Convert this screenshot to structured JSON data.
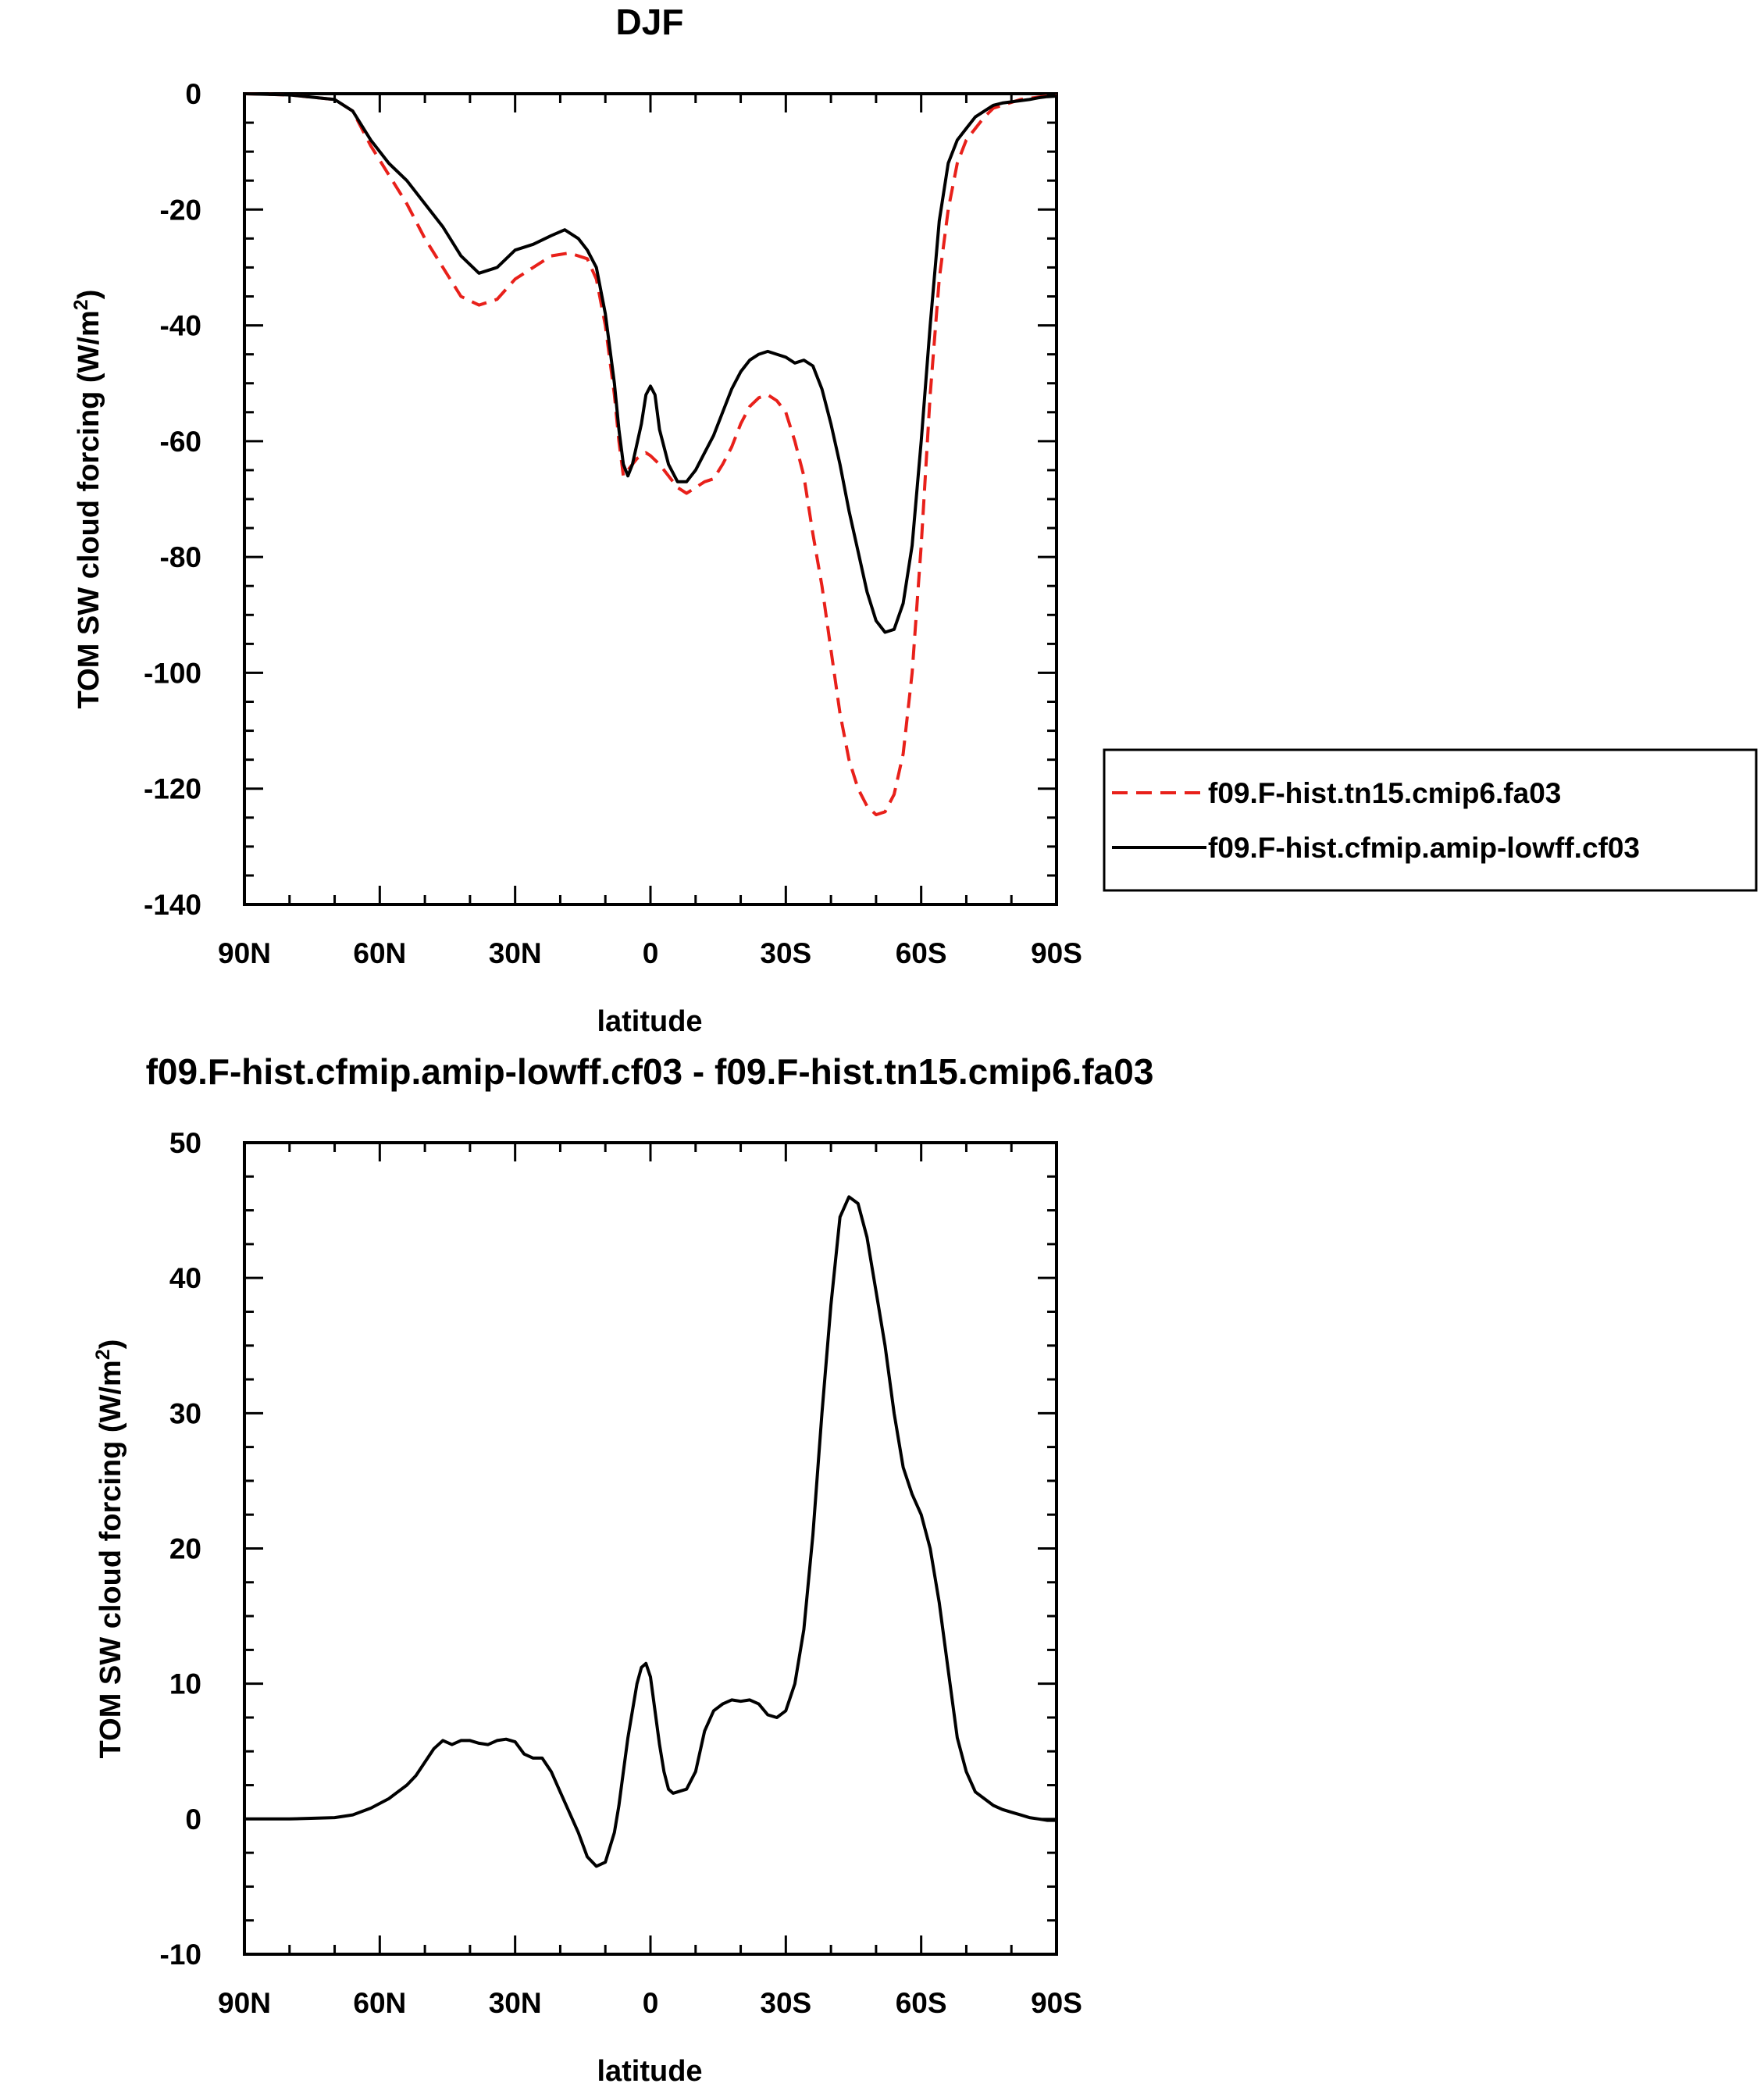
{
  "chart_data": [
    {
      "type": "line",
      "title": "DJF",
      "xlabel": "latitude",
      "ylabel": "TOM SW cloud forcing (W/m",
      "ylabel_sup": "2",
      "ylabel_close": ")",
      "xlim": [
        90,
        -90
      ],
      "ylim": [
        -140,
        0
      ],
      "x_ticks": [
        90,
        60,
        30,
        0,
        -30,
        -60,
        -90
      ],
      "x_tick_labels": [
        "90N",
        "60N",
        "30N",
        "0",
        "30S",
        "60S",
        "90S"
      ],
      "y_ticks": [
        0,
        -20,
        -40,
        -60,
        -80,
        -100,
        -120,
        -140
      ],
      "y_tick_labels": [
        "0",
        "-20",
        "-40",
        "-60",
        "-80",
        "-100",
        "-120",
        "-140"
      ],
      "legend_position": "right",
      "series": [
        {
          "name": "f09.F-hist.tn15.cmip6.fa03",
          "color": "#e8201a",
          "dash": "dashed",
          "x": [
            90,
            80,
            70,
            66,
            62,
            58,
            54,
            50,
            46,
            42,
            38,
            34,
            30,
            26,
            22,
            18,
            14,
            12,
            10,
            8,
            7,
            6,
            5,
            3,
            1,
            0,
            -2,
            -4,
            -6,
            -8,
            -10,
            -12,
            -14,
            -16,
            -18,
            -20,
            -22,
            -24,
            -26,
            -28,
            -30,
            -32,
            -34,
            -36,
            -38,
            -40,
            -42,
            -44,
            -46,
            -48,
            -50,
            -52,
            -54,
            -56,
            -58,
            -60,
            -62,
            -64,
            -66,
            -68,
            -70,
            -72,
            -74,
            -76,
            -78,
            -80,
            -82,
            -84,
            -86,
            -88,
            -90
          ],
          "values": [
            0,
            -0.2,
            -1,
            -3,
            -9,
            -14,
            -19,
            -25,
            -30,
            -35,
            -36.5,
            -35.5,
            -32,
            -30,
            -28,
            -27.5,
            -28.5,
            -32,
            -40,
            -52,
            -60,
            -66,
            -65,
            -63,
            -62,
            -62.5,
            -64,
            -66,
            -68,
            -69,
            -68,
            -67,
            -66.5,
            -64,
            -61,
            -57,
            -54,
            -52.5,
            -52,
            -53,
            -55,
            -60,
            -66,
            -76,
            -85,
            -96,
            -107,
            -115,
            -120,
            -123,
            -124.5,
            -124,
            -121,
            -114,
            -100,
            -78,
            -52,
            -32,
            -20,
            -12,
            -8,
            -6,
            -4,
            -2.5,
            -2,
            -1.5,
            -1,
            -0.8,
            -0.6,
            -0.4,
            -0.3
          ]
        },
        {
          "name": "f09.F-hist.cfmip.amip-lowff.cf03",
          "color": "#000000",
          "dash": "solid",
          "x": [
            90,
            80,
            70,
            66,
            62,
            58,
            54,
            50,
            46,
            42,
            38,
            34,
            30,
            26,
            22,
            19,
            16,
            14,
            12,
            10,
            8,
            7,
            6,
            5,
            4,
            2,
            1,
            0,
            -1,
            -2,
            -4,
            -6,
            -8,
            -10,
            -12,
            -14,
            -16,
            -18,
            -20,
            -22,
            -24,
            -26,
            -28,
            -30,
            -32,
            -34,
            -36,
            -38,
            -40,
            -42,
            -44,
            -46,
            -48,
            -50,
            -52,
            -54,
            -56,
            -58,
            -60,
            -62,
            -64,
            -66,
            -68,
            -70,
            -72,
            -74,
            -76,
            -78,
            -80,
            -82,
            -84,
            -86,
            -88,
            -90
          ],
          "values": [
            0,
            -0.2,
            -1,
            -3,
            -8,
            -12,
            -15,
            -19,
            -23,
            -28,
            -31,
            -30,
            -27,
            -26,
            -24.5,
            -23.5,
            -25,
            -27,
            -30,
            -38,
            -50,
            -58,
            -64,
            -66,
            -64,
            -57,
            -52,
            -50.5,
            -52,
            -58,
            -64,
            -67,
            -67,
            -65,
            -62,
            -59,
            -55,
            -51,
            -48,
            -46,
            -45,
            -44.5,
            -45,
            -45.5,
            -46.5,
            -46,
            -47,
            -51,
            -57,
            -64,
            -72,
            -79,
            -86,
            -91,
            -93,
            -92.5,
            -88,
            -78,
            -60,
            -40,
            -22,
            -12,
            -8,
            -6,
            -4,
            -3,
            -2,
            -1.6,
            -1.4,
            -1.2,
            -1,
            -0.7,
            -0.5,
            -0.4
          ]
        }
      ]
    },
    {
      "type": "line",
      "title": "f09.F-hist.cfmip.amip-lowff.cf03 - f09.F-hist.tn15.cmip6.fa03",
      "xlabel": "latitude",
      "ylabel": "TOM SW cloud forcing (W/m",
      "ylabel_sup": "2",
      "ylabel_close": ")",
      "xlim": [
        90,
        -90
      ],
      "ylim": [
        -10,
        50
      ],
      "x_ticks": [
        90,
        60,
        30,
        0,
        -30,
        -60,
        -90
      ],
      "x_tick_labels": [
        "90N",
        "60N",
        "30N",
        "0",
        "30S",
        "60S",
        "90S"
      ],
      "y_ticks": [
        50,
        40,
        30,
        20,
        10,
        0,
        -10
      ],
      "y_tick_labels": [
        "50",
        "40",
        "30",
        "20",
        "10",
        "0",
        "-10"
      ],
      "series": [
        {
          "color": "#000000",
          "dash": "solid",
          "x": [
            90,
            80,
            70,
            66,
            62,
            58,
            54,
            52,
            50,
            48,
            46,
            44,
            42,
            40,
            38,
            36,
            34,
            32,
            30,
            28,
            26,
            24,
            22,
            20,
            18,
            16,
            14,
            12,
            10,
            8,
            7,
            6,
            5,
            4,
            3,
            2,
            1,
            0,
            -1,
            -2,
            -3,
            -4,
            -5,
            -6,
            -8,
            -10,
            -12,
            -14,
            -16,
            -18,
            -20,
            -22,
            -24,
            -26,
            -28,
            -30,
            -32,
            -34,
            -36,
            -38,
            -40,
            -42,
            -44,
            -46,
            -48,
            -50,
            -52,
            -54,
            -56,
            -58,
            -60,
            -62,
            -64,
            -66,
            -68,
            -70,
            -72,
            -74,
            -76,
            -78,
            -80,
            -82,
            -84,
            -86,
            -88,
            -90
          ],
          "values": [
            0,
            0,
            0.1,
            0.3,
            0.8,
            1.5,
            2.5,
            3.2,
            4.2,
            5.2,
            5.8,
            5.5,
            5.8,
            5.8,
            5.6,
            5.5,
            5.8,
            5.9,
            5.7,
            4.8,
            4.5,
            4.5,
            3.5,
            2.0,
            0.5,
            -1.0,
            -2.8,
            -3.5,
            -3.2,
            -1.0,
            1.0,
            3.5,
            6.0,
            8.0,
            10.0,
            11.2,
            11.5,
            10.5,
            8.0,
            5.5,
            3.5,
            2.2,
            1.9,
            2.0,
            2.2,
            3.5,
            6.5,
            8.0,
            8.5,
            8.8,
            8.7,
            8.8,
            8.5,
            7.7,
            7.5,
            8.0,
            10.0,
            14.0,
            21.0,
            30.0,
            38.0,
            44.5,
            46.0,
            45.5,
            43.0,
            39.0,
            35.0,
            30.0,
            26.0,
            24.0,
            22.5,
            20.0,
            16.0,
            11.0,
            6.0,
            3.5,
            2.0,
            1.5,
            1.0,
            0.7,
            0.5,
            0.3,
            0.1,
            0.0,
            -0.1,
            -0.1
          ]
        }
      ]
    }
  ]
}
